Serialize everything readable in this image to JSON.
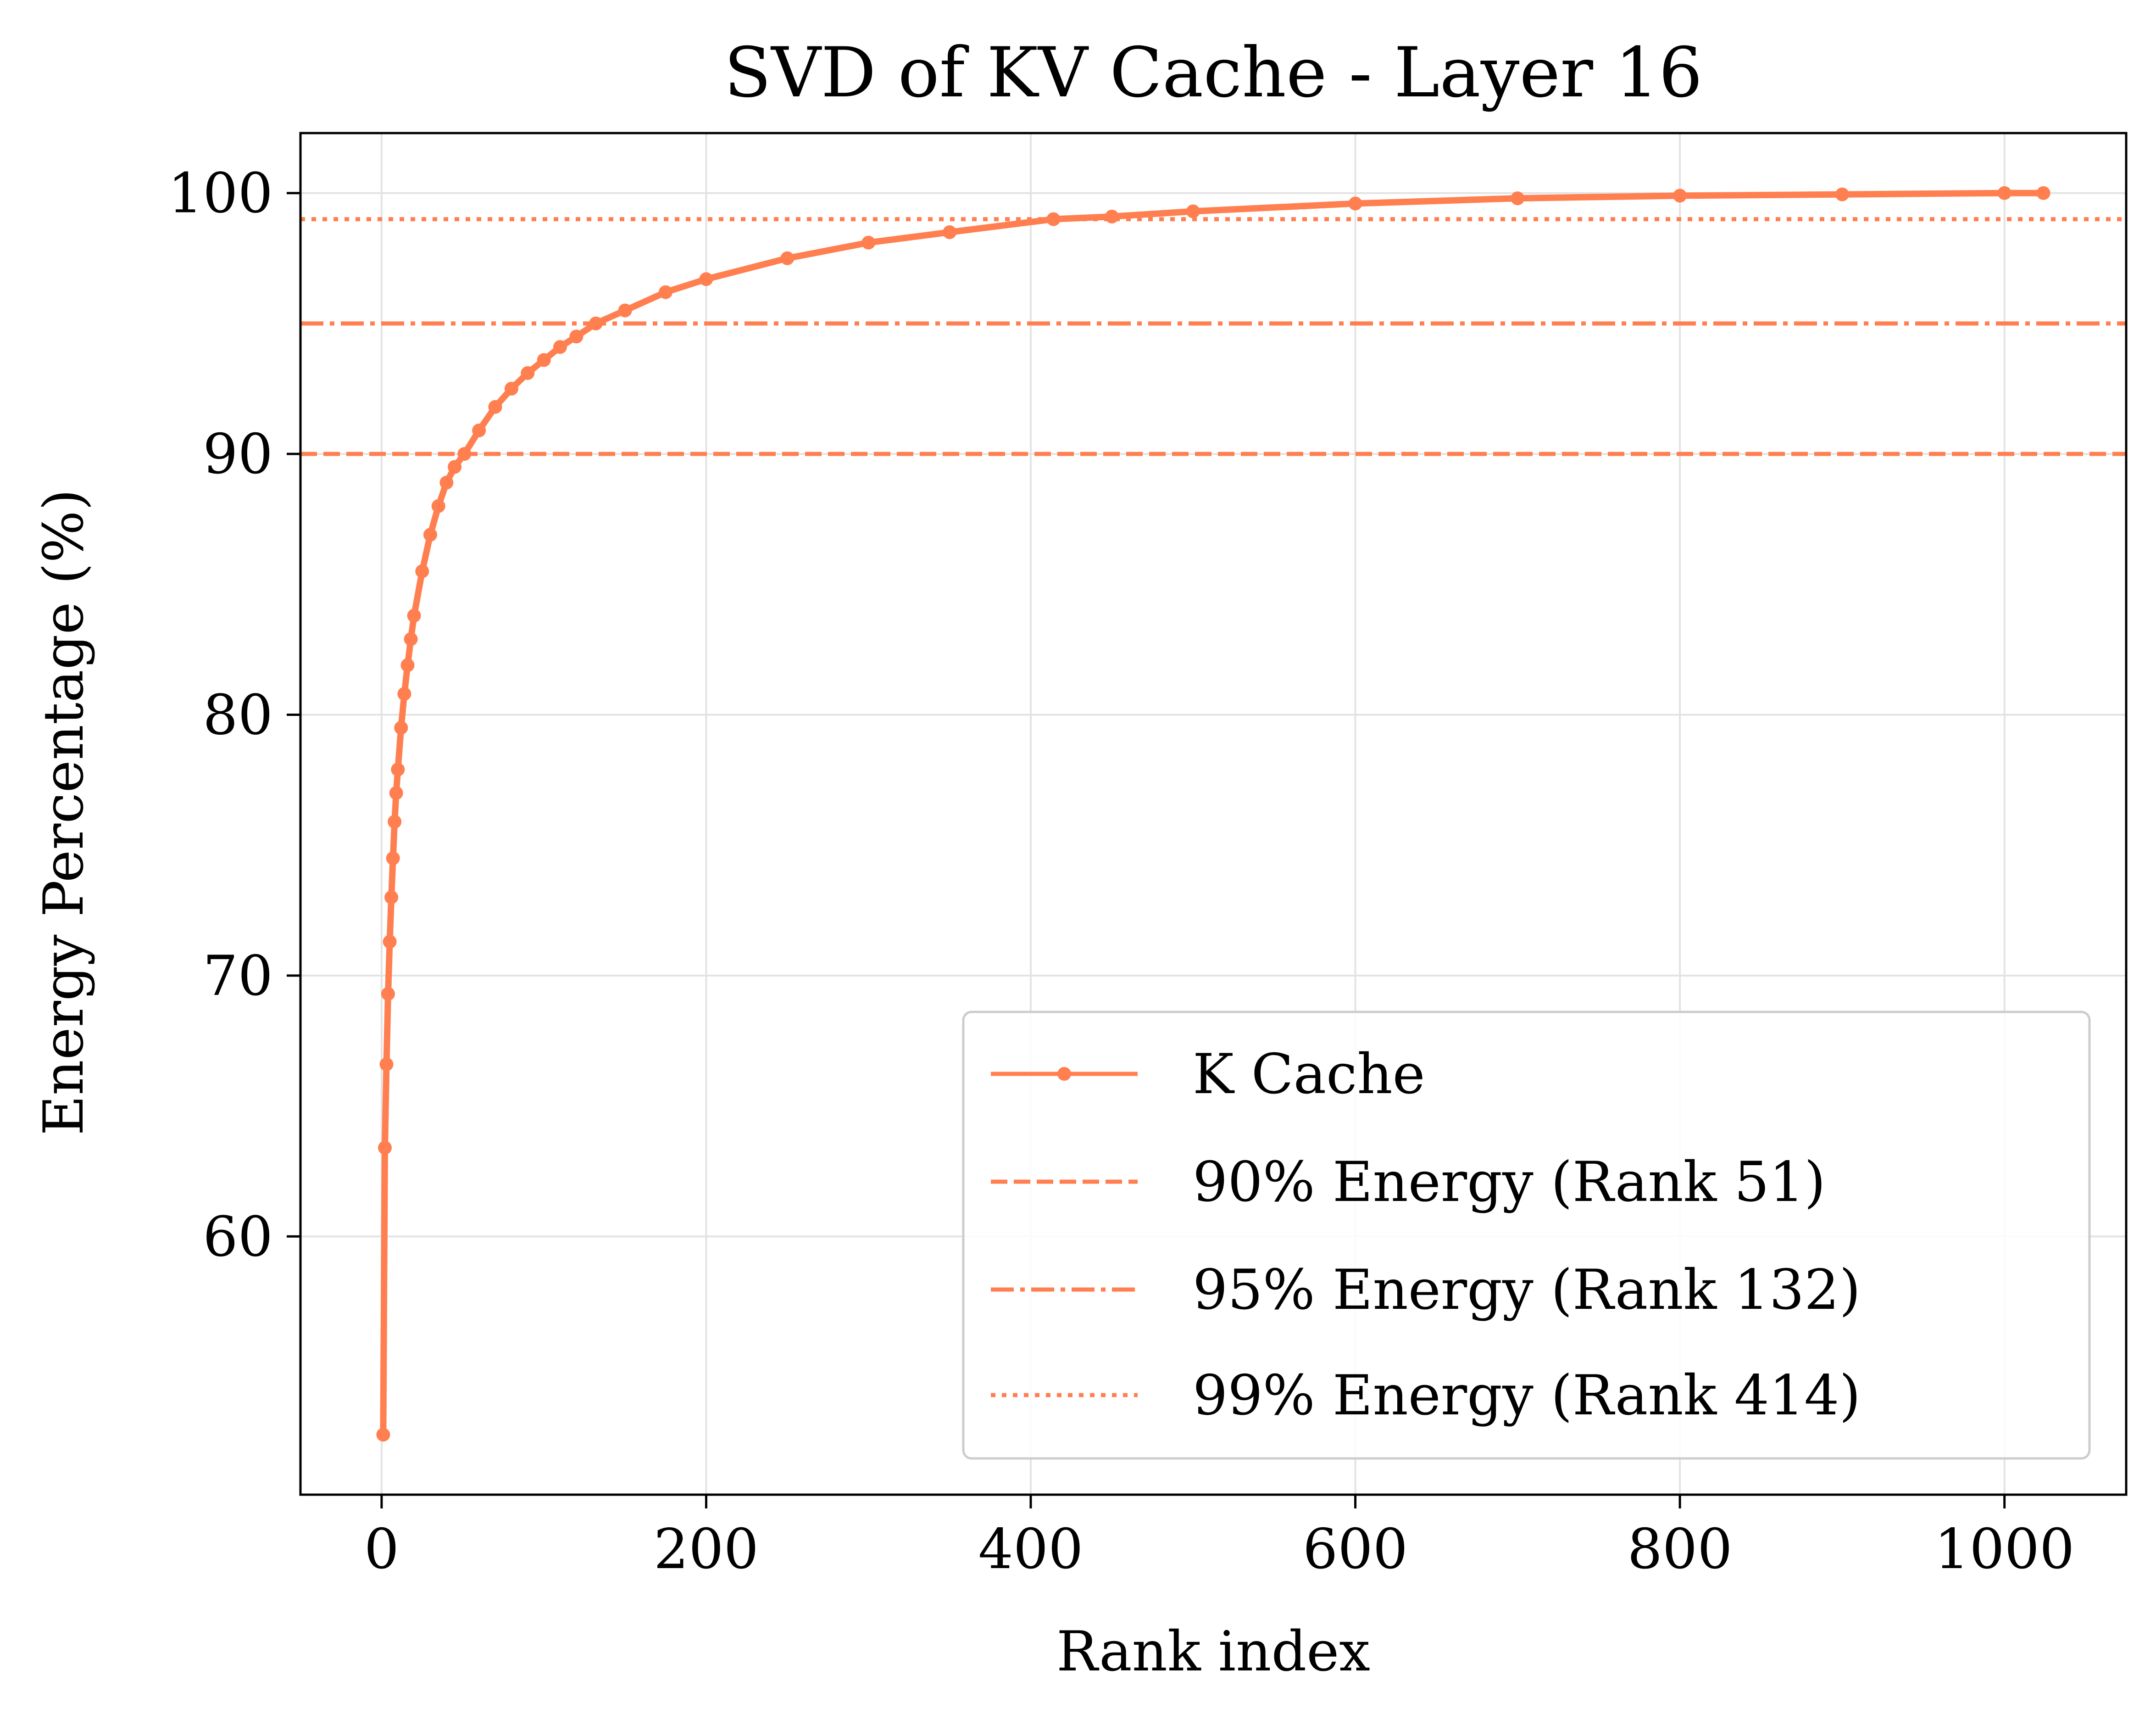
{
  "chart_data": {
    "type": "line",
    "title": "SVD of KV Cache - Layer 16",
    "xlabel": "Rank index",
    "ylabel": "Energy Percentage (%)",
    "xlim": [
      -50,
      1075
    ],
    "ylim": [
      50.1,
      102.3
    ],
    "x_ticks": [
      0,
      200,
      400,
      600,
      800,
      1000
    ],
    "y_ticks": [
      60,
      70,
      80,
      90,
      100
    ],
    "grid": true,
    "legend_position": "bottom-right",
    "color": "#ff7f50",
    "series": [
      {
        "name": "K Cache",
        "style": "solid-with-markers",
        "x": [
          1,
          2,
          3,
          4,
          5,
          6,
          7,
          8,
          9,
          10,
          12,
          14,
          16,
          18,
          20,
          25,
          30,
          35,
          40,
          45,
          51,
          60,
          70,
          80,
          90,
          100,
          110,
          120,
          132,
          150,
          175,
          200,
          250,
          300,
          350,
          414,
          450,
          500,
          600,
          700,
          800,
          900,
          1000,
          1024
        ],
        "y": [
          52.4,
          63.4,
          66.6,
          69.3,
          71.3,
          73.0,
          74.5,
          75.9,
          77.0,
          77.9,
          79.5,
          80.8,
          81.9,
          82.9,
          83.8,
          85.5,
          86.9,
          88.0,
          88.9,
          89.5,
          90.0,
          90.9,
          91.8,
          92.5,
          93.1,
          93.6,
          94.1,
          94.5,
          95.0,
          95.5,
          96.2,
          96.7,
          97.5,
          98.1,
          98.5,
          99.0,
          99.1,
          99.3,
          99.6,
          99.8,
          99.9,
          99.95,
          100.0,
          100.0
        ]
      }
    ],
    "thresholds": [
      {
        "name": "90% Energy (Rank 51)",
        "y": 90,
        "style": "dashed"
      },
      {
        "name": "95% Energy (Rank 132)",
        "y": 95,
        "style": "dashdot"
      },
      {
        "name": "99% Energy (Rank 414)",
        "y": 99,
        "style": "dotted"
      }
    ]
  }
}
